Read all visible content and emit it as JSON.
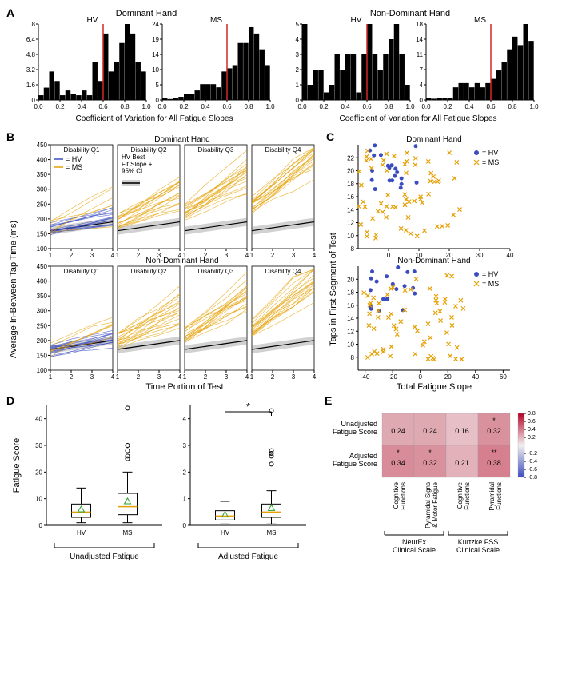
{
  "panelA": {
    "label": "A",
    "col_title_left": "Dominant Hand",
    "col_title_right": "Non-Dominant Hand",
    "subtitles": [
      "HV",
      "MS",
      "HV",
      "MS"
    ],
    "xlabel": "Coefficient of Variation for All Fatigue Slopes",
    "threshold_x": 0.6,
    "threshold_color": "#d62728",
    "histograms": [
      {
        "ymax": 8,
        "bins": [
          0.5,
          1.3,
          3,
          2,
          0.5,
          1,
          0.6,
          0.5,
          1,
          0.5,
          4,
          2,
          7,
          3,
          4,
          6,
          8,
          7,
          4,
          3
        ]
      },
      {
        "ymax": 24,
        "bins": [
          0.5,
          0.3,
          0.5,
          1,
          2,
          2,
          3,
          5,
          5,
          5,
          4,
          9,
          10,
          11,
          18,
          18,
          23,
          21,
          16,
          11
        ]
      },
      {
        "ymax": 5,
        "bins": [
          5,
          1,
          2,
          2,
          0.5,
          1,
          3,
          2,
          3,
          3,
          0.5,
          3,
          5,
          3,
          2,
          3,
          4,
          5,
          3,
          1
        ]
      },
      {
        "ymax": 18,
        "bins": [
          0.5,
          0.3,
          0.5,
          0.5,
          0.5,
          3,
          4,
          4,
          3,
          4,
          3,
          4,
          5,
          7,
          9,
          12,
          15,
          13,
          18,
          14
        ]
      }
    ]
  },
  "panelB": {
    "label": "B",
    "row_titles": [
      "Dominant Hand",
      "Non-Dominant Hand"
    ],
    "quartile_titles": [
      "Disability Q1",
      "Disability Q2",
      "Disability Q3",
      "Disability Q4"
    ],
    "ylabel": "Average In-Between Tap Time (ms)",
    "xlabel": "Time Portion of Test",
    "xticks": [
      1,
      2,
      3,
      4
    ],
    "ylim": [
      100,
      450
    ],
    "yticks": [
      100,
      150,
      200,
      250,
      300,
      350,
      400,
      450
    ],
    "legend": {
      "hv": "= HV",
      "ms": "= MS",
      "fit": "HV Best\nFit Slope +\n95% CI"
    },
    "hv_color": "#3b4cc0",
    "ms_color": "#e69f00",
    "fit_band_color": "#7a7a7a",
    "fit_line_color": "#000000"
  },
  "panelC": {
    "label": "C",
    "titles": [
      "Dominant Hand",
      "Non-Dominant Hand"
    ],
    "ylabel": "Taps in First Segment of Test",
    "xlabel": "Total Fatigue Slope",
    "legend_hv": "= HV",
    "legend_ms": "= MS",
    "top": {
      "xlim": [
        -10,
        40
      ],
      "ylim": [
        8,
        24
      ],
      "xticks": [
        0,
        10,
        20,
        30,
        40
      ],
      "yticks": [
        8,
        10,
        12,
        14,
        16,
        18,
        20,
        22
      ]
    },
    "bottom": {
      "xlim": [
        -45,
        65
      ],
      "ylim": [
        6,
        22
      ],
      "xticks": [
        -40,
        -20,
        0,
        20,
        40,
        60
      ],
      "yticks": [
        8,
        10,
        12,
        14,
        16,
        18,
        20
      ]
    }
  },
  "panelD": {
    "label": "D",
    "ylabel": "Fatigue Score",
    "groups": [
      "HV",
      "MS"
    ],
    "bottom_labels": [
      "Unadjusted Fatigue",
      "Adjusted Fatigue"
    ],
    "left": {
      "ylim": [
        0,
        45
      ],
      "yticks": [
        0,
        10,
        20,
        30,
        40
      ]
    },
    "right": {
      "ylim": [
        0,
        4.5
      ],
      "yticks": [
        0,
        1,
        2,
        3,
        4
      ]
    },
    "sig_marker": "*",
    "mean_marker_color": "#2ca02c",
    "boxes": {
      "left": [
        {
          "q1": 3,
          "med": 5,
          "q3": 8,
          "lo": 1,
          "hi": 14,
          "mean": 6,
          "out": []
        },
        {
          "q1": 4,
          "med": 7,
          "q3": 12,
          "lo": 1,
          "hi": 20,
          "mean": 9,
          "out": [
            25,
            26,
            28,
            30,
            44
          ]
        }
      ],
      "right": [
        {
          "q1": 0.2,
          "med": 0.35,
          "q3": 0.55,
          "lo": 0.05,
          "hi": 0.9,
          "mean": 0.4,
          "out": []
        },
        {
          "q1": 0.3,
          "med": 0.5,
          "q3": 0.8,
          "lo": 0.05,
          "hi": 1.3,
          "mean": 0.65,
          "out": [
            2.3,
            2.6,
            2.7,
            2.8,
            4.3
          ]
        }
      ]
    }
  },
  "panelE": {
    "label": "E",
    "rows": [
      "Unadjusted\nFatigue Score",
      "Adjusted\nFatigue Score"
    ],
    "cols": [
      "Cognitive\nFunctions",
      "Pyramidal Signs\n& Motor Fatigue",
      "Cognitive\nFunctions",
      "Pyramidal\nFunctions"
    ],
    "bottom_groups": [
      "NeurEx\nClinical Scale",
      "Kurtzke FSS\nClinical Scale"
    ],
    "values": [
      [
        0.24,
        0.24,
        0.16,
        0.32
      ],
      [
        0.34,
        0.32,
        0.21,
        0.38
      ]
    ],
    "sig": [
      [
        "",
        "",
        "",
        "*"
      ],
      [
        "*",
        "*",
        "",
        "**"
      ]
    ],
    "colorbar": {
      "min": -0.8,
      "max": 0.8,
      "ticks": [
        -0.8,
        -0.6,
        -0.4,
        -0.2,
        0.2,
        0.4,
        0.6,
        0.8
      ]
    },
    "cmap_neg": "#3b4cc0",
    "cmap_pos": "#b40426",
    "cmap_mid": "#f2efee"
  }
}
